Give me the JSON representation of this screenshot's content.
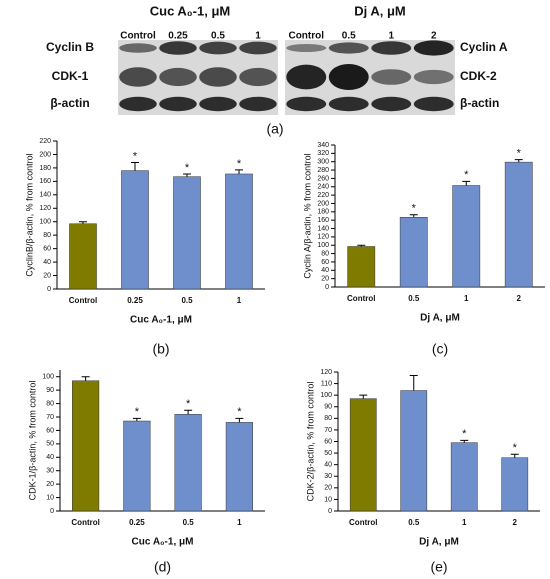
{
  "blot": {
    "label": "(a)",
    "left": {
      "title": "Cuc A₀-1, μM",
      "lanes": [
        "Control",
        "0.25",
        "0.5",
        "1"
      ],
      "rows": [
        "Cyclin B",
        "CDK-1",
        "β-actin"
      ]
    },
    "right": {
      "title": "Dj A, μM",
      "lanes": [
        "Control",
        "0.5",
        "1",
        "2"
      ],
      "rows": [
        "Cyclin A",
        "CDK-2",
        "β-actin"
      ]
    }
  },
  "chart_data": [
    {
      "type": "bar",
      "panel": "(b)",
      "ylabel": "CyclinB/β-actin, % from control",
      "xlabel": "Cuc A₀-1, μM",
      "categories": [
        "Control",
        "0.25",
        "0.5",
        "1"
      ],
      "values": [
        97,
        176,
        167,
        171
      ],
      "errors": [
        3,
        12,
        4,
        6
      ],
      "colors": [
        "#7f7a00",
        "#6f8fcc",
        "#6f8fcc",
        "#6f8fcc"
      ],
      "annotations": [
        null,
        "*",
        "*",
        "*"
      ],
      "ylim": [
        0,
        220
      ],
      "yticks": [
        0,
        20,
        40,
        60,
        80,
        100,
        120,
        140,
        160,
        180,
        200,
        220
      ]
    },
    {
      "type": "bar",
      "panel": "(c)",
      "ylabel": "Cyclin A/β-actin, % from control",
      "xlabel": "Dj A, μM",
      "categories": [
        "Control",
        "0.5",
        "1",
        "2"
      ],
      "values": [
        97,
        167,
        243,
        299
      ],
      "errors": [
        3,
        6,
        10,
        6
      ],
      "colors": [
        "#7f7a00",
        "#6f8fcc",
        "#6f8fcc",
        "#6f8fcc"
      ],
      "annotations": [
        null,
        "*",
        "*",
        "*"
      ],
      "ylim": [
        0,
        340
      ],
      "yticks": [
        0,
        20,
        40,
        60,
        80,
        100,
        120,
        140,
        160,
        180,
        200,
        220,
        240,
        260,
        280,
        300,
        320,
        340
      ]
    },
    {
      "type": "bar",
      "panel": "(d)",
      "ylabel": "CDK-1/β-actin, % from control",
      "xlabel": "Cuc A₀-1, μM",
      "categories": [
        "Control",
        "0.25",
        "0.5",
        "1"
      ],
      "values": [
        97,
        67,
        72,
        66
      ],
      "errors": [
        3,
        2,
        3,
        3
      ],
      "colors": [
        "#7f7a00",
        "#6f8fcc",
        "#6f8fcc",
        "#6f8fcc"
      ],
      "annotations": [
        null,
        "*",
        "*",
        "*"
      ],
      "ylim": [
        0,
        105
      ],
      "yticks": [
        0,
        10,
        20,
        30,
        40,
        50,
        60,
        70,
        80,
        90,
        100
      ]
    },
    {
      "type": "bar",
      "panel": "(e)",
      "ylabel": "CDK-2/β-actin, % from control",
      "xlabel": "Dj A, μM",
      "categories": [
        "Control",
        "0.5",
        "1",
        "2"
      ],
      "values": [
        97,
        104,
        59,
        46
      ],
      "errors": [
        3,
        13,
        2,
        3
      ],
      "colors": [
        "#7f7a00",
        "#6f8fcc",
        "#6f8fcc",
        "#6f8fcc"
      ],
      "annotations": [
        null,
        null,
        "*",
        "*"
      ],
      "ylim": [
        0,
        120
      ],
      "yticks": [
        0,
        10,
        20,
        30,
        40,
        50,
        60,
        70,
        80,
        90,
        100,
        110,
        120
      ]
    }
  ]
}
